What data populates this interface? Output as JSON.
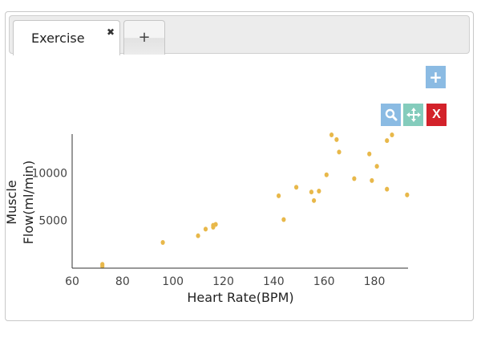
{
  "tabs": [
    {
      "label": "Exercise",
      "close_glyph": "✖"
    },
    {
      "label": "+"
    }
  ],
  "toolbar": {
    "add_label": "+",
    "zoom_icon": "magnifier-icon",
    "pan_icon": "move-icon",
    "close_label": "X",
    "colors": {
      "add": "#8bbbe3",
      "zoom": "#8bbbe3",
      "pan": "#84ccbc",
      "close": "#d3222a"
    }
  },
  "chart_data": {
    "type": "scatter",
    "title": "",
    "xlabel": "Heart Rate(BPM)",
    "ylabel_lines": [
      "Muscle",
      "Flow(ml/min)"
    ],
    "xlim": [
      60,
      193
    ],
    "ylim": [
      0,
      14000
    ],
    "xticks": [
      60,
      80,
      100,
      120,
      140,
      160,
      180
    ],
    "yticks": [
      5000,
      10000
    ],
    "grid": false,
    "marker_color": "#e8b84a",
    "points": [
      {
        "x": 72,
        "y": 200
      },
      {
        "x": 72,
        "y": 400
      },
      {
        "x": 96,
        "y": 2700
      },
      {
        "x": 110,
        "y": 3400
      },
      {
        "x": 113,
        "y": 4100
      },
      {
        "x": 116,
        "y": 4300
      },
      {
        "x": 116,
        "y": 4500
      },
      {
        "x": 117,
        "y": 4600
      },
      {
        "x": 142,
        "y": 7600
      },
      {
        "x": 144,
        "y": 5100
      },
      {
        "x": 149,
        "y": 8500
      },
      {
        "x": 155,
        "y": 8000
      },
      {
        "x": 156,
        "y": 7100
      },
      {
        "x": 158,
        "y": 8100
      },
      {
        "x": 161,
        "y": 9800
      },
      {
        "x": 163,
        "y": 14000
      },
      {
        "x": 165,
        "y": 13500
      },
      {
        "x": 166,
        "y": 12200
      },
      {
        "x": 172,
        "y": 9400
      },
      {
        "x": 178,
        "y": 12000
      },
      {
        "x": 179,
        "y": 9200
      },
      {
        "x": 181,
        "y": 10700
      },
      {
        "x": 185,
        "y": 13400
      },
      {
        "x": 185,
        "y": 8300
      },
      {
        "x": 187,
        "y": 14000
      },
      {
        "x": 193,
        "y": 7700
      }
    ]
  }
}
